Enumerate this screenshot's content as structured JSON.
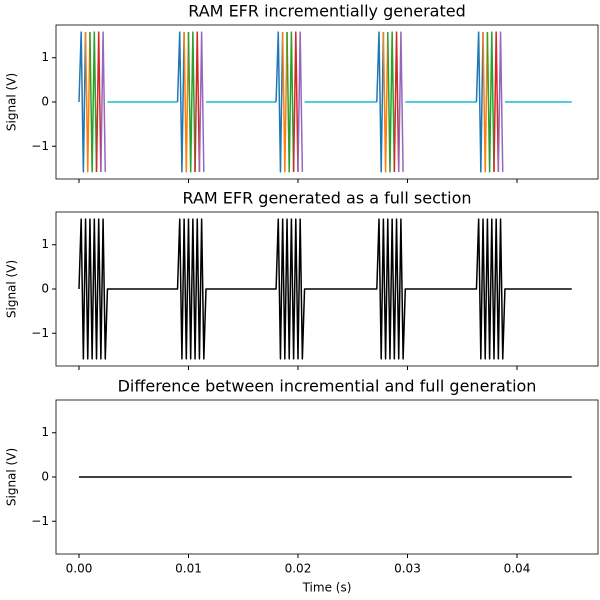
{
  "chart_data": [
    {
      "type": "line",
      "title": "RAM EFR incrementially generated",
      "ylabel": "Signal (V)",
      "xlim": [
        -0.0021,
        0.0474
      ],
      "ylim": [
        -1.74,
        1.74
      ],
      "yticks": [
        {
          "value": -1,
          "label": "−1"
        },
        0,
        1
      ],
      "series": [
        {
          "color": "#17becf",
          "x": [
            0.0026,
            0.009,
            null,
            0.0116,
            0.018,
            null,
            0.0206,
            0.0272,
            null,
            0.0298,
            0.0363,
            null,
            0.0389,
            0.045
          ],
          "values": [
            0,
            0,
            null,
            0,
            0,
            null,
            0,
            0,
            null,
            0,
            0,
            null,
            0,
            0
          ]
        },
        {
          "color": "#1f77b4",
          "x": [
            0,
            0.0002,
            0.0004,
            0.0006,
            null,
            0.009,
            0.0092,
            0.0094,
            0.0096,
            null,
            0.018,
            0.0182,
            0.0184,
            0.0186,
            null,
            0.0272,
            0.0274,
            0.0276,
            0.0278,
            null,
            0.0363,
            0.0365,
            0.0367,
            0.0369
          ],
          "values": [
            0,
            1.58,
            -1.58,
            1.58,
            null,
            0,
            1.58,
            -1.58,
            1.58,
            null,
            0,
            1.58,
            -1.58,
            1.58,
            null,
            0,
            1.58,
            -1.58,
            1.58,
            null,
            0,
            1.58,
            -1.58,
            1.58
          ]
        },
        {
          "color": "#ff7f0e",
          "x": [
            0.0006,
            0.0008,
            0.001,
            null,
            0.0096,
            0.0098,
            0.01,
            null,
            0.0186,
            0.0188,
            0.019,
            null,
            0.0278,
            0.028,
            0.0282,
            null,
            0.0369,
            0.0371,
            0.0373
          ],
          "values": [
            1.58,
            -1.58,
            1.58,
            null,
            1.58,
            -1.58,
            1.58,
            null,
            1.58,
            -1.58,
            1.58,
            null,
            1.58,
            -1.58,
            1.58,
            null,
            1.58,
            -1.58,
            1.58
          ]
        },
        {
          "color": "#2ca02c",
          "x": [
            0.001,
            0.0012,
            0.0014,
            0.0016,
            null,
            0.01,
            0.0102,
            0.0104,
            0.0106,
            null,
            0.019,
            0.0192,
            0.0194,
            0.0196,
            null,
            0.0282,
            0.0284,
            0.0286,
            0.0288,
            null,
            0.0373,
            0.0375,
            0.0377,
            0.0379
          ],
          "values": [
            1.58,
            -1.58,
            1.58,
            -1.58,
            null,
            1.58,
            -1.58,
            1.58,
            -1.58,
            null,
            1.58,
            -1.58,
            1.58,
            -1.58,
            null,
            1.58,
            -1.58,
            1.58,
            -1.58,
            null,
            1.58,
            -1.58,
            1.58,
            -1.58
          ]
        },
        {
          "color": "#d62728",
          "x": [
            0.0016,
            0.0018,
            0.002,
            null,
            0.0106,
            0.0108,
            0.011,
            null,
            0.0196,
            0.0198,
            0.02,
            null,
            0.0288,
            0.029,
            0.0292,
            null,
            0.0379,
            0.0381,
            0.0383
          ],
          "values": [
            -1.58,
            1.58,
            -1.58,
            null,
            -1.58,
            1.58,
            -1.58,
            null,
            -1.58,
            1.58,
            -1.58,
            null,
            -1.58,
            1.58,
            -1.58,
            null,
            -1.58,
            1.58,
            -1.58
          ]
        },
        {
          "color": "#9467bd",
          "x": [
            0.002,
            0.0022,
            0.0024,
            null,
            0.011,
            0.0112,
            0.0114,
            null,
            0.02,
            0.0202,
            0.0204,
            null,
            0.0292,
            0.0294,
            0.0296,
            null,
            0.0383,
            0.0385,
            0.0387
          ],
          "values": [
            -1.58,
            1.58,
            -1.58,
            null,
            -1.58,
            1.58,
            -1.58,
            null,
            -1.58,
            1.58,
            -1.58,
            null,
            -1.58,
            1.58,
            -1.58,
            null,
            -1.58,
            1.58,
            -1.58
          ]
        }
      ]
    },
    {
      "type": "line",
      "title": "RAM EFR generated as a full section",
      "ylabel": "Signal (V)",
      "xlim": [
        -0.0021,
        0.0474
      ],
      "ylim": [
        -1.74,
        1.74
      ],
      "yticks": [
        {
          "value": -1,
          "label": "−1"
        },
        0,
        1
      ],
      "series": [
        {
          "color": "#000000",
          "x": [
            0,
            0.0002,
            0.0004,
            0.0006,
            0.0008,
            0.001,
            0.0012,
            0.0014,
            0.0016,
            0.0018,
            0.002,
            0.0022,
            0.0024,
            0.0026,
            0.009,
            0.0092,
            0.0094,
            0.0096,
            0.0098,
            0.01,
            0.0102,
            0.0104,
            0.0106,
            0.0108,
            0.011,
            0.0112,
            0.0114,
            0.0116,
            0.018,
            0.0182,
            0.0184,
            0.0186,
            0.0188,
            0.019,
            0.0192,
            0.0194,
            0.0196,
            0.0198,
            0.02,
            0.0202,
            0.0204,
            0.0206,
            0.0272,
            0.0274,
            0.0276,
            0.0278,
            0.028,
            0.0282,
            0.0284,
            0.0286,
            0.0288,
            0.029,
            0.0292,
            0.0294,
            0.0296,
            0.0298,
            0.0363,
            0.0365,
            0.0367,
            0.0369,
            0.0371,
            0.0373,
            0.0375,
            0.0377,
            0.0379,
            0.0381,
            0.0383,
            0.0385,
            0.0387,
            0.0389,
            0.045
          ],
          "values": [
            0,
            1.58,
            -1.58,
            1.58,
            -1.58,
            1.58,
            -1.58,
            1.58,
            -1.58,
            1.58,
            -1.58,
            1.58,
            -1.58,
            0,
            0,
            1.58,
            -1.58,
            1.58,
            -1.58,
            1.58,
            -1.58,
            1.58,
            -1.58,
            1.58,
            -1.58,
            1.58,
            -1.58,
            0,
            0,
            1.58,
            -1.58,
            1.58,
            -1.58,
            1.58,
            -1.58,
            1.58,
            -1.58,
            1.58,
            -1.58,
            1.58,
            -1.58,
            0,
            0,
            1.58,
            -1.58,
            1.58,
            -1.58,
            1.58,
            -1.58,
            1.58,
            -1.58,
            1.58,
            -1.58,
            1.58,
            -1.58,
            0,
            0,
            1.58,
            -1.58,
            1.58,
            -1.58,
            1.58,
            -1.58,
            1.58,
            -1.58,
            1.58,
            -1.58,
            1.58,
            -1.58,
            0,
            0
          ]
        }
      ]
    },
    {
      "type": "line",
      "title": "Difference between incremential and full generation",
      "ylabel": "Signal (V)",
      "xlabel": "Time (s)",
      "xlim": [
        -0.0021,
        0.0474
      ],
      "ylim": [
        -1.74,
        1.74
      ],
      "yticks": [
        {
          "value": -1,
          "label": "−1"
        },
        0,
        1
      ],
      "xticks": [
        {
          "value": 0,
          "label": "0.00"
        },
        {
          "value": 0.01,
          "label": "0.01"
        },
        {
          "value": 0.02,
          "label": "0.02"
        },
        {
          "value": 0.03,
          "label": "0.03"
        },
        {
          "value": 0.04,
          "label": "0.04"
        }
      ],
      "series": [
        {
          "color": "#000000",
          "x": [
            0,
            0.045
          ],
          "values": [
            0,
            0
          ]
        }
      ]
    }
  ]
}
